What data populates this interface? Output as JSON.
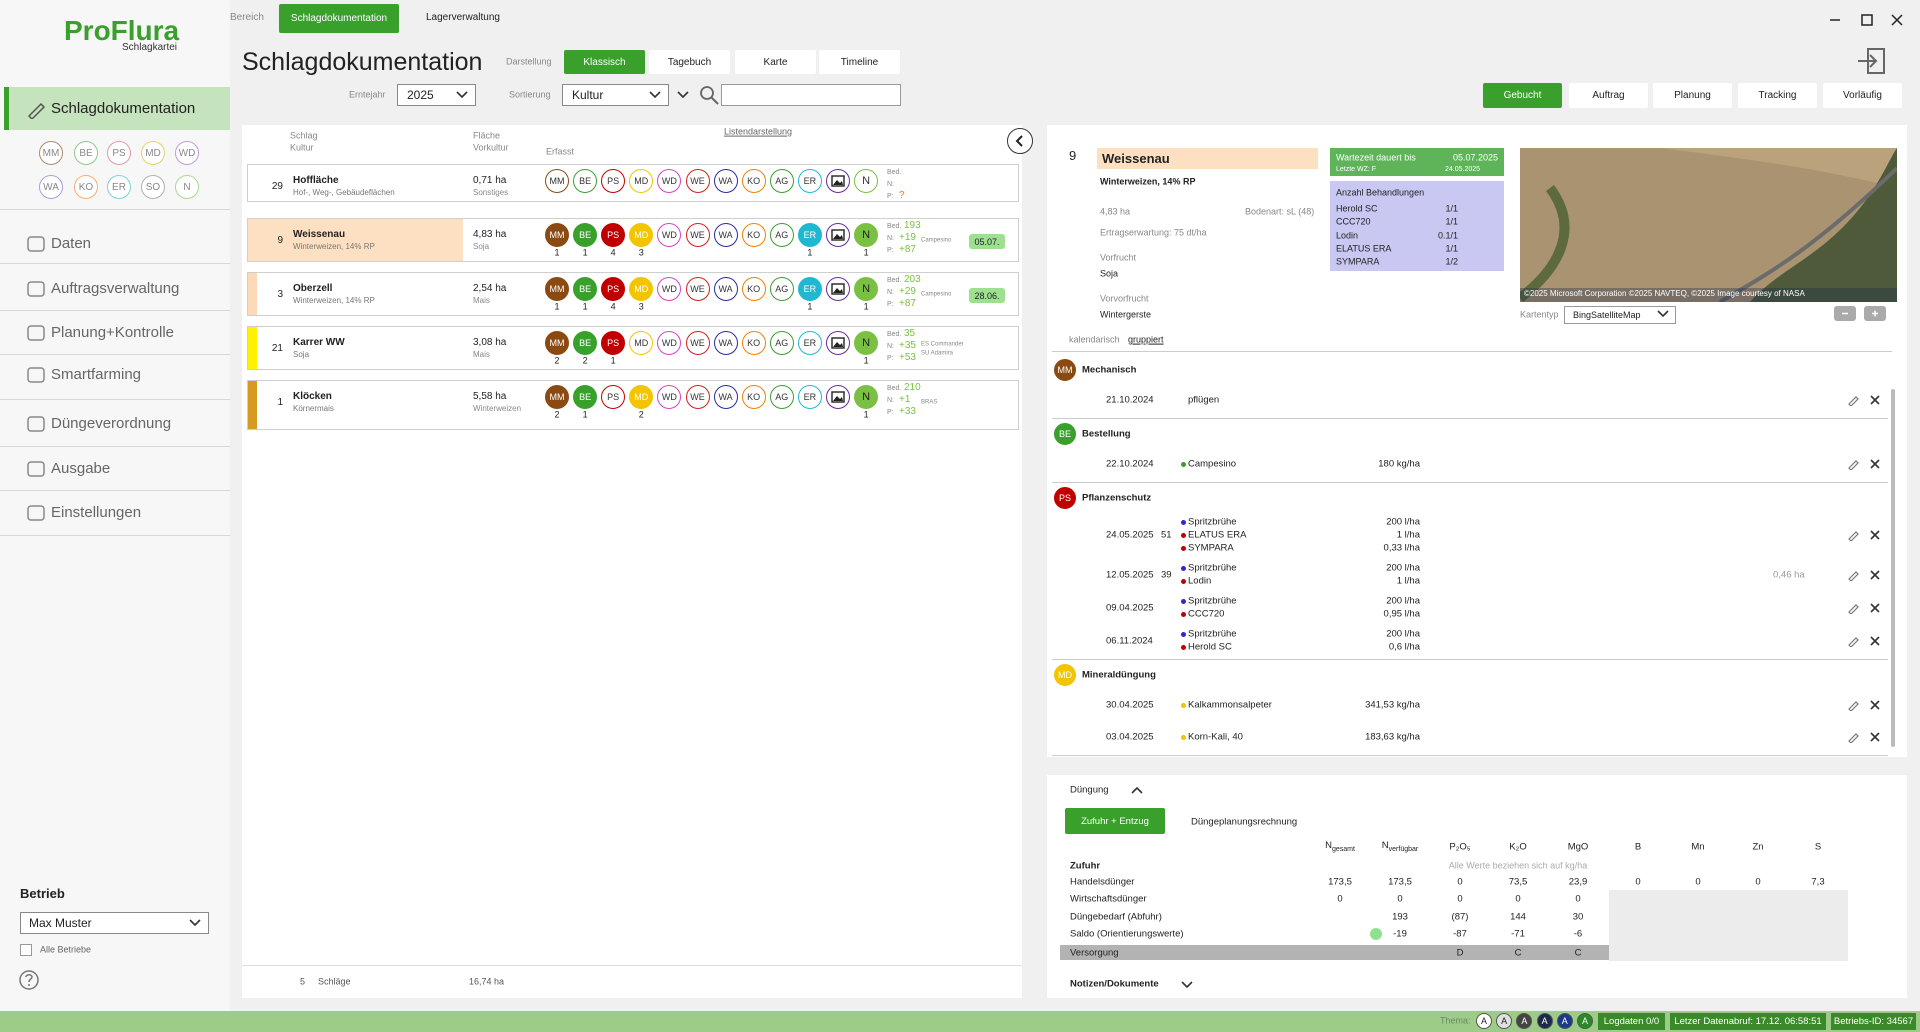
{
  "app": {
    "logo": "ProFlura",
    "logo_sub": "Schlagkartei"
  },
  "topnav": {
    "items": [
      "Bereich",
      "Schlagdokumentation",
      "Lagerverwaltung"
    ],
    "active": 1
  },
  "sidebar": {
    "active": "Schlagdokumentation",
    "chips": [
      "MM",
      "BE",
      "PS",
      "MD",
      "WD",
      "WA",
      "KO",
      "ER",
      "SO",
      "N"
    ],
    "chip_colors": [
      "#b08a6a",
      "#8cc88c",
      "#e59aa8",
      "#e8d070",
      "#c49ad8",
      "#a8a0d8",
      "#f0b070",
      "#80d0d8",
      "#b0b0b0",
      "#a8d890"
    ],
    "items": [
      "Daten",
      "Auftragsverwaltung",
      "Planung+Kontrolle",
      "Smartfarming",
      "Düngeverordnung",
      "Ausgabe",
      "Einstellungen"
    ],
    "betrieb_label": "Betrieb",
    "betrieb": "Max Muster",
    "alle_betriebe": "Alle Betriebe"
  },
  "toolbar": {
    "title": "Schlagdokumentation",
    "darstellung_label": "Darstellung",
    "views": [
      "Klassisch",
      "Tagebuch",
      "Karte",
      "Timeline"
    ],
    "active_view": 0,
    "erntejahr_label": "Erntejahr",
    "erntejahr": "2025",
    "sortierung_label": "Sortierung",
    "sortierung": "Kultur",
    "status_tabs": [
      "Gebucht",
      "Auftrag",
      "Planung",
      "Tracking",
      "Vorläufig"
    ],
    "active_status": 0
  },
  "list": {
    "headers": {
      "schlag": "Schlag",
      "kultur": "Kultur",
      "flaeche": "Fläche",
      "vorkultur": "Vorkultur",
      "erfasst": "Erfasst",
      "listendarstellung": "Listendarstellung"
    },
    "codes": [
      "MM",
      "BE",
      "PS",
      "MD",
      "WD",
      "WE",
      "WA",
      "KO",
      "AG",
      "ER"
    ],
    "code_colors": [
      "#8b4a12",
      "#3aa02c",
      "#c00000",
      "#f2c500",
      "#d046c8",
      "#d02020",
      "#2a2aa0",
      "#f08000",
      "#3aa02c",
      "#20b8d0"
    ],
    "n_code": "N",
    "n_color": "#7ac143",
    "rows": [
      {
        "nr": "29",
        "name": "Hoffläche",
        "kultur": "Hof-, Weg-, Gebäudeflächen",
        "flaeche": "0,71 ha",
        "vorkultur": "Sonstiges",
        "counts": [
          null,
          null,
          null,
          null,
          null,
          null,
          null,
          null,
          null,
          null
        ],
        "n_count": null,
        "bed_label": "Bed.",
        "n_label": "N:",
        "p_label": "P:",
        "p": "?"
      },
      {
        "nr": "9",
        "name": "Weissenau",
        "kultur": "Winterweizen, 14% RP",
        "flaeche": "4,83 ha",
        "vorkultur": "Soja",
        "color": "#fde0c2",
        "selected": true,
        "counts": [
          1,
          1,
          4,
          3,
          null,
          null,
          null,
          null,
          null,
          1
        ],
        "n_count": 1,
        "bed_label": "Bed.",
        "bed": "193",
        "n_label": "N:",
        "n": "+19",
        "p_label": "P:",
        "p": "+87",
        "sorten": [
          "Campesino"
        ],
        "badge": "05.07."
      },
      {
        "nr": "3",
        "name": "Oberzell",
        "kultur": "Winterweizen, 14% RP",
        "flaeche": "2,54 ha",
        "vorkultur": "Mais",
        "color": "#fcd9b8",
        "counts": [
          1,
          1,
          4,
          3,
          null,
          null,
          null,
          null,
          null,
          1
        ],
        "n_count": 1,
        "bed_label": "Bed.",
        "bed": "203",
        "n_label": "N:",
        "n": "+29",
        "p_label": "P:",
        "p": "+87",
        "sorten": [
          "Campesino"
        ],
        "badge": "28.06."
      },
      {
        "nr": "21",
        "name": "Karrer WW",
        "kultur": "Soja",
        "flaeche": "3,08 ha",
        "vorkultur": "Mais",
        "color": "#fff200",
        "counts": [
          2,
          2,
          1,
          null,
          null,
          null,
          null,
          null,
          null,
          null
        ],
        "n_count": 1,
        "bed_label": "Bed.",
        "bed": "35",
        "n_label": "N:",
        "n": "+35",
        "p_label": "P:",
        "p": "+53",
        "sorten": [
          "ES Commander",
          "SU Adamira"
        ]
      },
      {
        "nr": "1",
        "name": "Klöcken",
        "kultur": "Körnermais",
        "flaeche": "5,58 ha",
        "vorkultur": "Winterweizen",
        "color": "#d69a20",
        "counts": [
          2,
          1,
          null,
          2,
          null,
          null,
          null,
          null,
          null,
          null
        ],
        "n_count": 1,
        "bed_label": "Bed.",
        "bed": "210",
        "n_label": "N:",
        "n": "+1",
        "p_label": "P:",
        "p": "+33",
        "sorten": [
          "BRAS"
        ]
      }
    ],
    "footer": {
      "count": "5",
      "count_label": "Schläge",
      "total": "16,74 ha"
    }
  },
  "detail": {
    "nr": "9",
    "name": "Weissenau",
    "kultur": "Winterweizen, 14% RP",
    "flaeche": "4,83 ha",
    "bodenart": "Bodenart: sL (48)",
    "ertrag": "Ertragserwartung: 75 dt/ha",
    "vorfrucht_label": "Vorfrucht",
    "vorfrucht": "Soja",
    "vorvorfrucht_label": "Vorvorfrucht",
    "vorvorfrucht": "Wintergerste",
    "wartezeit": {
      "label": "Wartezeit dauert bis",
      "date": "05.07.2025",
      "last_label": "Letzte WZ: F",
      "last_date": "24.05.2025"
    },
    "behandlungen": {
      "title": "Anzahl Behandlungen",
      "items": [
        {
          "name": "Herold SC",
          "value": "1/1"
        },
        {
          "name": "CCC720",
          "value": "1/1"
        },
        {
          "name": "Lodin",
          "value": "0.1/1"
        },
        {
          "name": "ELATUS ERA",
          "value": "1/1"
        },
        {
          "name": "SYMPARA",
          "value": "1/2"
        }
      ]
    },
    "map_credit": "©2025 Microsoft Corporation ©2025 NAVTEQ, ©2025 Image courtesy of NASA",
    "kartentyp_label": "Kartentyp",
    "kartentyp": "BingSatelliteMap",
    "mode_label": "kalendarisch",
    "mode_link": "gruppiert",
    "groups": [
      {
        "code": "MM",
        "color": "#8b4a12",
        "title": "Mechanisch",
        "entries": [
          {
            "date": "21.10.2024",
            "items": [
              {
                "name": "pflügen"
              }
            ]
          }
        ]
      },
      {
        "code": "BE",
        "color": "#3aa02c",
        "title": "Bestellung",
        "entries": [
          {
            "date": "22.10.2024",
            "items": [
              {
                "name": "Campesino",
                "amount": "180 kg/ha",
                "dot": "#3aa02c"
              }
            ]
          }
        ]
      },
      {
        "code": "PS",
        "color": "#c00000",
        "title": "Pflanzenschutz",
        "entries": [
          {
            "date": "24.05.2025",
            "stage": "51",
            "items": [
              {
                "name": "Spritzbrühe",
                "amount": "200 l/ha",
                "dot": "#2a2ad0"
              },
              {
                "name": "ELATUS ERA",
                "amount": "1 l/ha",
                "dot": "#c00000"
              },
              {
                "name": "SYMPARA",
                "amount": "0,33 l/ha",
                "dot": "#c00000"
              }
            ]
          },
          {
            "date": "12.05.2025",
            "stage": "39",
            "area": "0,46 ha",
            "items": [
              {
                "name": "Spritzbrühe",
                "amount": "200 l/ha",
                "dot": "#2a2ad0"
              },
              {
                "name": "Lodin",
                "amount": "1 l/ha",
                "dot": "#c00000"
              }
            ]
          },
          {
            "date": "09.04.2025",
            "items": [
              {
                "name": "Spritzbrühe",
                "amount": "200 l/ha",
                "dot": "#2a2ad0"
              },
              {
                "name": "CCC720",
                "amount": "0,95 l/ha",
                "dot": "#c00000"
              }
            ]
          },
          {
            "date": "06.11.2024",
            "items": [
              {
                "name": "Spritzbrühe",
                "amount": "200 l/ha",
                "dot": "#2a2ad0"
              },
              {
                "name": "Herold SC",
                "amount": "0,6 l/ha",
                "dot": "#c00000"
              }
            ]
          }
        ]
      },
      {
        "code": "MD",
        "color": "#f2c500",
        "title": "Mineraldüngung",
        "entries": [
          {
            "date": "30.04.2025",
            "items": [
              {
                "name": "Kalkammonsalpeter",
                "amount": "341,53 kg/ha",
                "dot": "#f2c500"
              }
            ]
          },
          {
            "date": "03.04.2025",
            "items": [
              {
                "name": "Korn-Kali, 40",
                "amount": "183,63 kg/ha",
                "dot": "#f2c500"
              }
            ]
          }
        ]
      }
    ]
  },
  "duengung": {
    "title": "Düngung",
    "tabs": [
      "Zufuhr + Entzug",
      "Düngeplanungsrechnung"
    ],
    "active_tab": 0,
    "columns": [
      {
        "main": "N",
        "sub": "gesamt"
      },
      {
        "main": "N",
        "sub": "verfügbar"
      },
      {
        "main": "P₂O₅"
      },
      {
        "main": "K₂O"
      },
      {
        "main": "MgO"
      },
      {
        "main": "B"
      },
      {
        "main": "Mn"
      },
      {
        "main": "Zn"
      },
      {
        "main": "S"
      }
    ],
    "rows": [
      {
        "label": "Zufuhr",
        "note": "Alle Werte beziehen sich auf kg/ha",
        "bold": true
      },
      {
        "label": "Handelsdünger",
        "values": [
          "173,5",
          "173,5",
          "0",
          "73,5",
          "23,9",
          "0",
          "0",
          "0",
          "7,3"
        ]
      },
      {
        "label": "Wirtschaftsdünger",
        "values": [
          "0",
          "0",
          "0",
          "0",
          "0"
        ]
      },
      {
        "label": "Düngebedarf (Abfuhr)",
        "values": [
          null,
          "193",
          "(87)",
          "144",
          "30"
        ]
      },
      {
        "label": "Saldo (Orientierungswerte)",
        "values": [
          null,
          "-19",
          "-87",
          "-71",
          "-6"
        ],
        "dot": "#8fe08f"
      },
      {
        "label": "Versorgung",
        "values": [
          null,
          null,
          "D",
          "C",
          "C"
        ],
        "shade": true
      }
    ],
    "notes": "Notizen/Dokumente"
  },
  "statusbar": {
    "thema_label": "Thema:",
    "theme_buttons": [
      "A",
      "A",
      "A",
      "A",
      "A",
      "A"
    ],
    "theme_colors": [
      "#ffffff",
      "#e0e0e0",
      "#444444",
      "#1e2a4a",
      "#1a3a8a",
      "#2a8a2a"
    ],
    "logdaten": "Logdaten 0/0",
    "datenabruf": "Letzer Datenabruf: 17.12. 06:58:51",
    "betriebs_id": "Betriebs-ID: 34567"
  }
}
